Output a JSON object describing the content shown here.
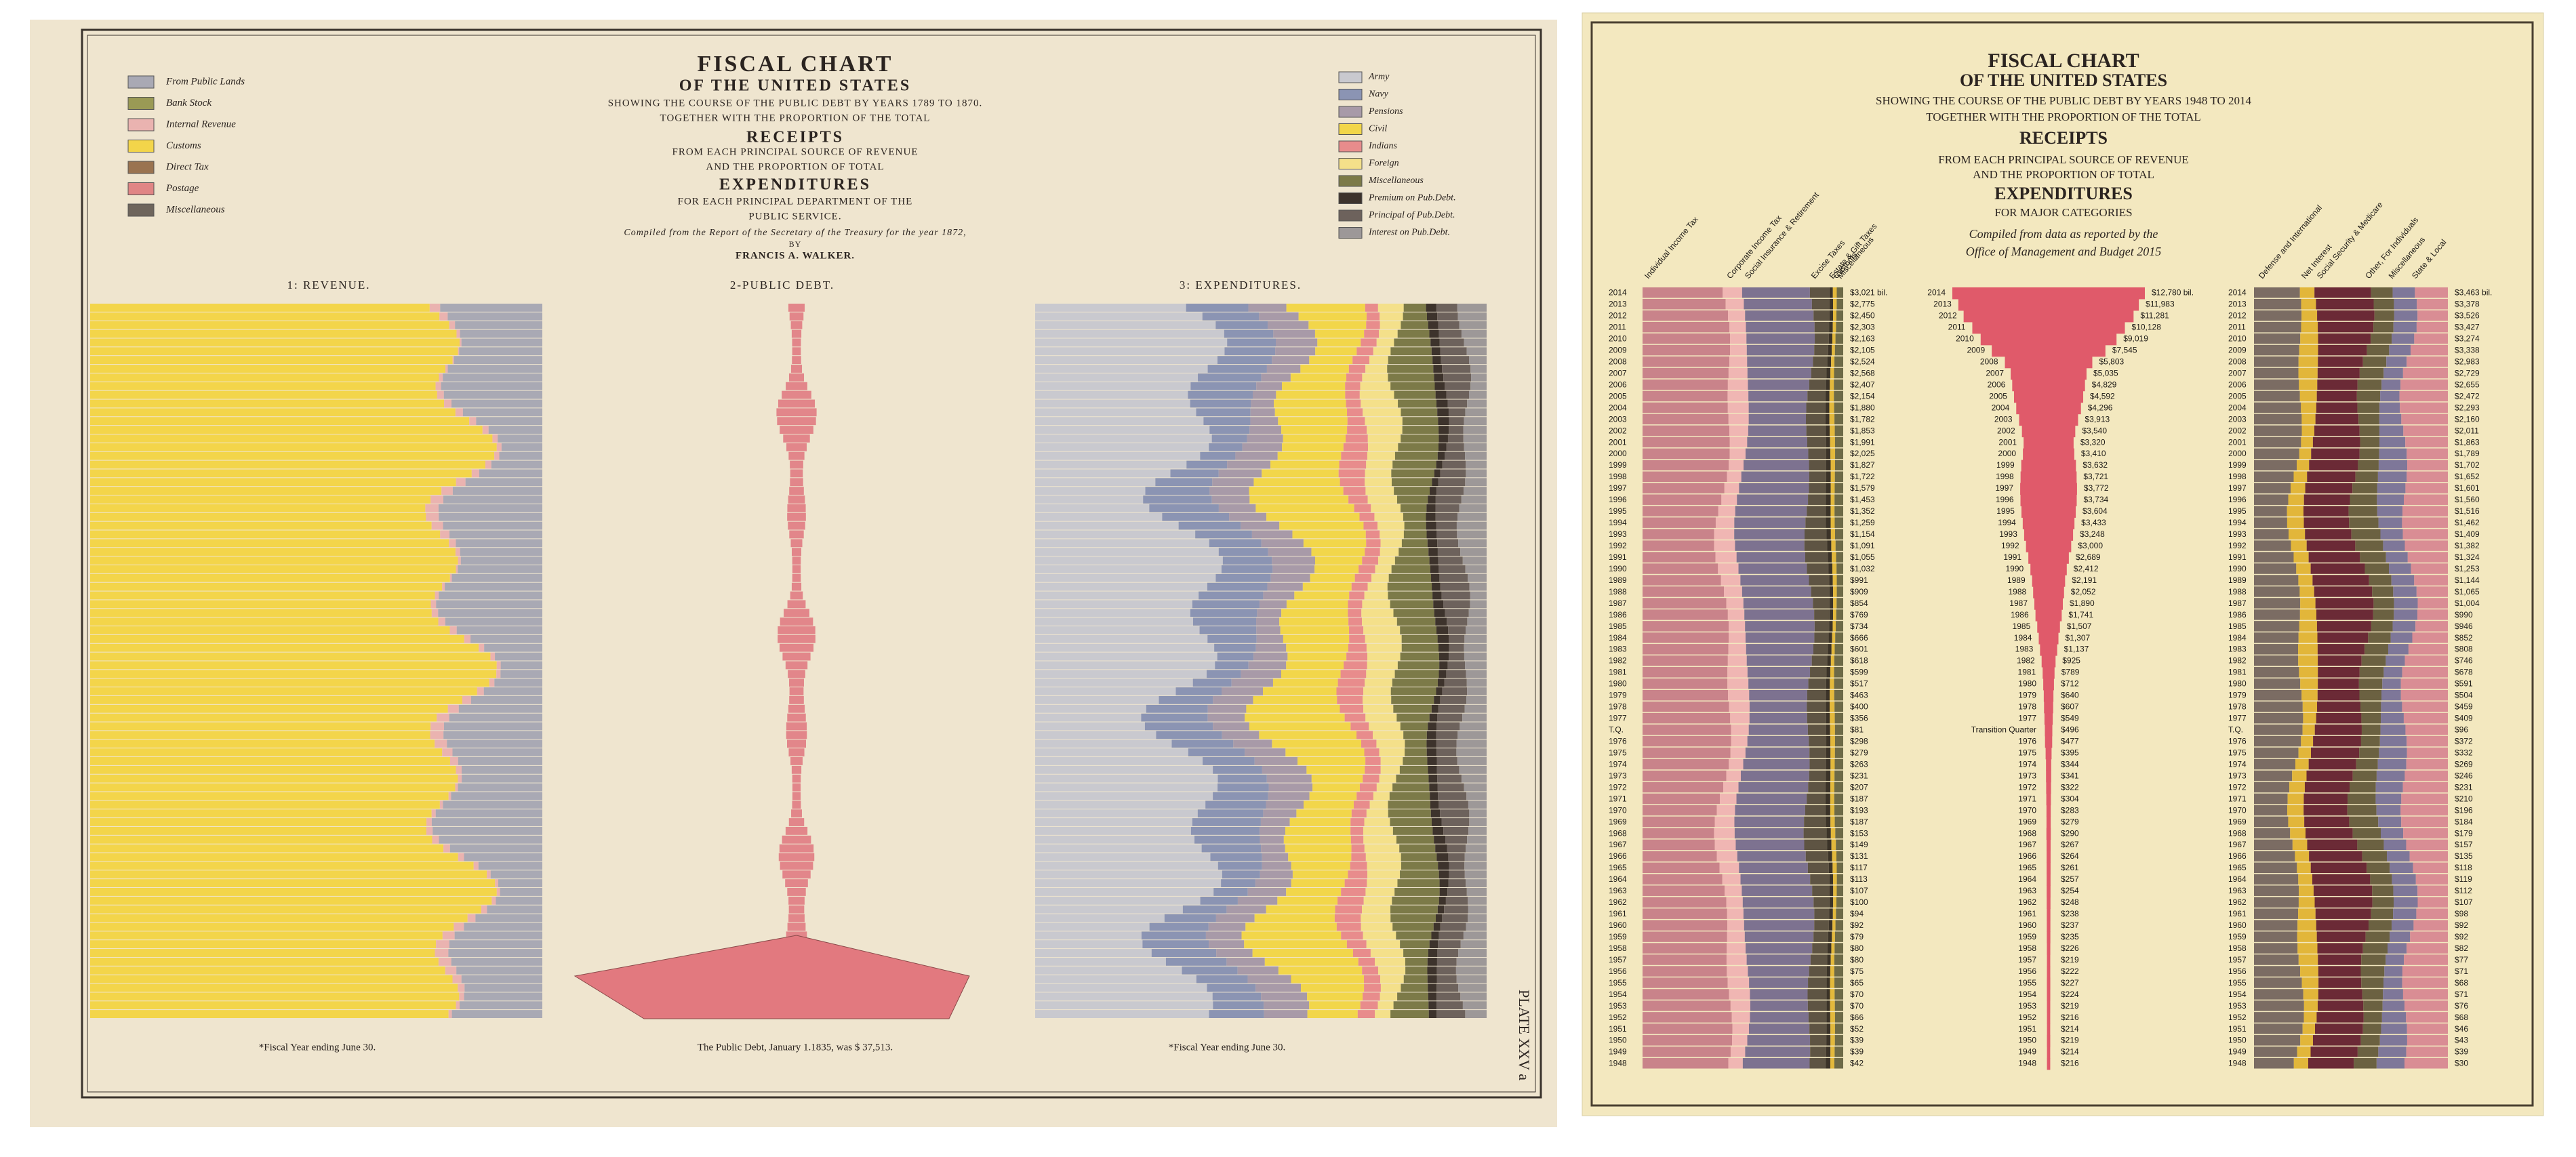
{
  "left_chart": {
    "title_lines": [
      "FISCAL CHART",
      "OF THE UNITED STATES",
      "SHOWING THE COURSE OF THE PUBLIC DEBT BY YEARS 1789 TO 1870.",
      "TOGETHER WITH THE PROPORTION OF THE TOTAL",
      "RECEIPTS",
      "FROM EACH PRINCIPAL SOURCE OF REVENUE",
      "AND THE PROPORTION OF TOTAL",
      "EXPENDITURES",
      "FOR EACH PRINCIPAL DEPARTMENT OF THE",
      "PUBLIC SERVICE.",
      "Compiled from the Report of the Secretary of the Treasury for the year 1872,",
      "BY",
      "FRANCIS A. WALKER."
    ],
    "revenue_legend": [
      {
        "name": "From Public Lands",
        "color": "#a9a9b4"
      },
      {
        "name": "Bank Stock",
        "color": "#9a9a55"
      },
      {
        "name": "Internal Revenue",
        "color": "#eab3b0"
      },
      {
        "name": "Customs",
        "color": "#f3d54a"
      },
      {
        "name": "Direct Tax",
        "color": "#9a7350"
      },
      {
        "name": "Postage",
        "color": "#e08585"
      },
      {
        "name": "Miscellaneous",
        "color": "#6e655c"
      }
    ],
    "expenditure_legend": [
      {
        "name": "Army",
        "color": "#c9c9cf"
      },
      {
        "name": "Navy",
        "color": "#8b94b3"
      },
      {
        "name": "Pensions",
        "color": "#a89aa8"
      },
      {
        "name": "Civil",
        "color": "#f2d64a"
      },
      {
        "name": "Indians",
        "color": "#e88c8c"
      },
      {
        "name": "Foreign",
        "color": "#f4e08a"
      },
      {
        "name": "Miscellaneous",
        "color": "#7c7a48"
      },
      {
        "name": "Premium on Pub.Debt.",
        "color": "#3d332c"
      },
      {
        "name": "Principal of Pub.Debt.",
        "color": "#6d625c"
      },
      {
        "name": "Interest on Pub.Debt.",
        "color": "#9d9898"
      }
    ],
    "sections": [
      "1: REVENUE.",
      "2-PUBLIC DEBT.",
      "3: EXPENDITURES."
    ],
    "footnotes": [
      "*Fiscal Year ending June 30.",
      "The Public Debt, January 1.1835, was $ 37,513.",
      "*Fiscal Year ending June 30."
    ],
    "plate": "PLATE XXV a"
  },
  "right_chart": {
    "title_lines": [
      "FISCAL CHART",
      "OF THE UNITED STATES",
      "SHOWING THE COURSE OF THE PUBLIC DEBT BY YEARS 1948 TO 2014",
      "TOGETHER WITH THE PROPORTION OF THE TOTAL",
      "RECEIPTS",
      "FROM EACH PRINCIPAL SOURCE OF REVENUE",
      "AND THE PROPORTION OF TOTAL",
      "EXPENDITURES",
      "FOR MAJOR CATEGORIES",
      "Compiled from data as reported by the",
      "Office of Management and Budget 2015"
    ],
    "revenue_categories": [
      {
        "name": "Individual Income Tax",
        "color": "#c9838a"
      },
      {
        "name": "Corporate Income Tax",
        "color": "#f0b6b3"
      },
      {
        "name": "Social Insurance & Retirement",
        "color": "#7d7290"
      },
      {
        "name": "Excise Taxes",
        "color": "#5e5443"
      },
      {
        "name": "Estate & Gift Taxes",
        "color": "#3b3328"
      },
      {
        "name": "Customs",
        "color": "#e3b93c"
      },
      {
        "name": "Miscellaneous",
        "color": "#6d6a47"
      }
    ],
    "expenditure_categories": [
      {
        "name": "Defense and International",
        "color": "#7b6c63"
      },
      {
        "name": "Net Interest",
        "color": "#e2b63a"
      },
      {
        "name": "Social Security & Medicare",
        "color": "#6b2a36"
      },
      {
        "name": "Other, For Individuals",
        "color": "#6b6141"
      },
      {
        "name": "Miscellaneous",
        "color": "#7e7799"
      },
      {
        "name": "State & Local",
        "color": "#d98d94"
      }
    ],
    "years": [
      "2014",
      "2013",
      "2012",
      "2011",
      "2010",
      "2009",
      "2008",
      "2007",
      "2006",
      "2005",
      "2004",
      "2003",
      "2002",
      "2001",
      "2000",
      "1999",
      "1998",
      "1997",
      "1996",
      "1995",
      "1994",
      "1993",
      "1992",
      "1991",
      "1990",
      "1989",
      "1988",
      "1987",
      "1986",
      "1985",
      "1984",
      "1983",
      "1982",
      "1981",
      "1980",
      "1979",
      "1978",
      "1977",
      "T.Q.",
      "1976",
      "1975",
      "1974",
      "1973",
      "1972",
      "1971",
      "1970",
      "1969",
      "1968",
      "1967",
      "1966",
      "1965",
      "1964",
      "1963",
      "1962",
      "1961",
      "1960",
      "1959",
      "1958",
      "1957",
      "1956",
      "1955",
      "1954",
      "1953",
      "1952",
      "1951",
      "1950",
      "1949",
      "1948"
    ],
    "debt_years": [
      "2014",
      "2013",
      "2012",
      "2011",
      "2010",
      "2009",
      "2008",
      "2007",
      "2006",
      "2005",
      "2004",
      "2003",
      "2002",
      "2001",
      "2000",
      "1999",
      "1998",
      "1997",
      "1996",
      "1995",
      "1994",
      "1993",
      "1992",
      "1991",
      "1990",
      "1989",
      "1988",
      "1987",
      "1986",
      "1985",
      "1984",
      "1983",
      "1982",
      "1981",
      "1980",
      "1979",
      "1978",
      "1977",
      "Transition Quarter",
      "1976",
      "1975",
      "1974",
      "1973",
      "1972",
      "1971",
      "1970",
      "1969",
      "1968",
      "1967",
      "1966",
      "1965",
      "1964",
      "1963",
      "1962",
      "1961",
      "1960",
      "1959",
      "1958",
      "1957",
      "1956",
      "1955",
      "1954",
      "1953",
      "1952",
      "1951",
      "1950",
      "1949",
      "1948"
    ],
    "revenue_labels": [
      "$3,021 bil.",
      "$2,775",
      "$2,450",
      "$2,303",
      "$2,163",
      "$2,105",
      "$2,524",
      "$2,568",
      "$2,407",
      "$2,154",
      "$1,880",
      "$1,782",
      "$1,853",
      "$1,991",
      "$2,025",
      "$1,827",
      "$1,722",
      "$1,579",
      "$1,453",
      "$1,352",
      "$1,259",
      "$1,154",
      "$1,091",
      "$1,055",
      "$1,032",
      "$991",
      "$909",
      "$854",
      "$769",
      "$734",
      "$666",
      "$601",
      "$618",
      "$599",
      "$517",
      "$463",
      "$400",
      "$356",
      "$81",
      "$298",
      "$279",
      "$263",
      "$231",
      "$207",
      "$187",
      "$193",
      "$187",
      "$153",
      "$149",
      "$131",
      "$117",
      "$113",
      "$107",
      "$100",
      "$94",
      "$92",
      "$79",
      "$80",
      "$80",
      "$75",
      "$65",
      "$70",
      "$70",
      "$66",
      "$52",
      "$39",
      "$39",
      "$42"
    ],
    "debt": {
      "color": "#e05a6a",
      "values": [
        12780,
        11983,
        11281,
        10128,
        9019,
        7545,
        5803,
        5035,
        4829,
        4592,
        4296,
        3913,
        3540,
        3320,
        3410,
        3632,
        3721,
        3772,
        3734,
        3604,
        3433,
        3248,
        3000,
        2689,
        2412,
        2191,
        2052,
        1890,
        1741,
        1507,
        1307,
        1137,
        925,
        789,
        712,
        640,
        607,
        549,
        496,
        477,
        395,
        344,
        341,
        322,
        304,
        283,
        279,
        290,
        267,
        264,
        261,
        257,
        254,
        248,
        238,
        237,
        235,
        226,
        219,
        222,
        227,
        224,
        219,
        216,
        214,
        219,
        214,
        216
      ],
      "value_labels": [
        "$12,780 bil.",
        "$11,983",
        "$11,281",
        "$10,128",
        "$9,019",
        "$7,545",
        "$5,803",
        "$5,035",
        "$4,829",
        "$4,592",
        "$4,296",
        "$3,913",
        "$3,540",
        "$3,320",
        "$3,410",
        "$3,632",
        "$3,721",
        "$3,772",
        "$3,734",
        "$3,604",
        "$3,433",
        "$3,248",
        "$3,000",
        "$2,689",
        "$2,412",
        "$2,191",
        "$2,052",
        "$1,890",
        "$1,741",
        "$1,507",
        "$1,307",
        "$1,137",
        "$925",
        "$789",
        "$712",
        "$640",
        "$607",
        "$549",
        "$496",
        "$477",
        "$395",
        "$344",
        "$341",
        "$322",
        "$304",
        "$283",
        "$279",
        "$290",
        "$267",
        "$264",
        "$261",
        "$257",
        "$254",
        "$248",
        "$238",
        "$237",
        "$235",
        "$226",
        "$219",
        "$222",
        "$227",
        "$224",
        "$219",
        "$216",
        "$214",
        "$219",
        "$214",
        "$216"
      ]
    },
    "expenditure_labels": [
      "$3,463 bil.",
      "$3,378",
      "$3,526",
      "$3,427",
      "$3,274",
      "$3,338",
      "$2,983",
      "$2,729",
      "$2,655",
      "$2,472",
      "$2,293",
      "$2,160",
      "$2,011",
      "$1,863",
      "$1,789",
      "$1,702",
      "$1,652",
      "$1,601",
      "$1,560",
      "$1,516",
      "$1,462",
      "$1,409",
      "$1,382",
      "$1,324",
      "$1,253",
      "$1,144",
      "$1,065",
      "$1,004",
      "$990",
      "$946",
      "$852",
      "$808",
      "$746",
      "$678",
      "$591",
      "$504",
      "$459",
      "$409",
      "$96",
      "$372",
      "$332",
      "$269",
      "$246",
      "$231",
      "$210",
      "$196",
      "$184",
      "$179",
      "$157",
      "$135",
      "$118",
      "$119",
      "$112",
      "$107",
      "$98",
      "$92",
      "$92",
      "$82",
      "$77",
      "$71",
      "$68",
      "$71",
      "$76",
      "$68",
      "$46",
      "$43",
      "$39",
      "$30"
    ]
  }
}
